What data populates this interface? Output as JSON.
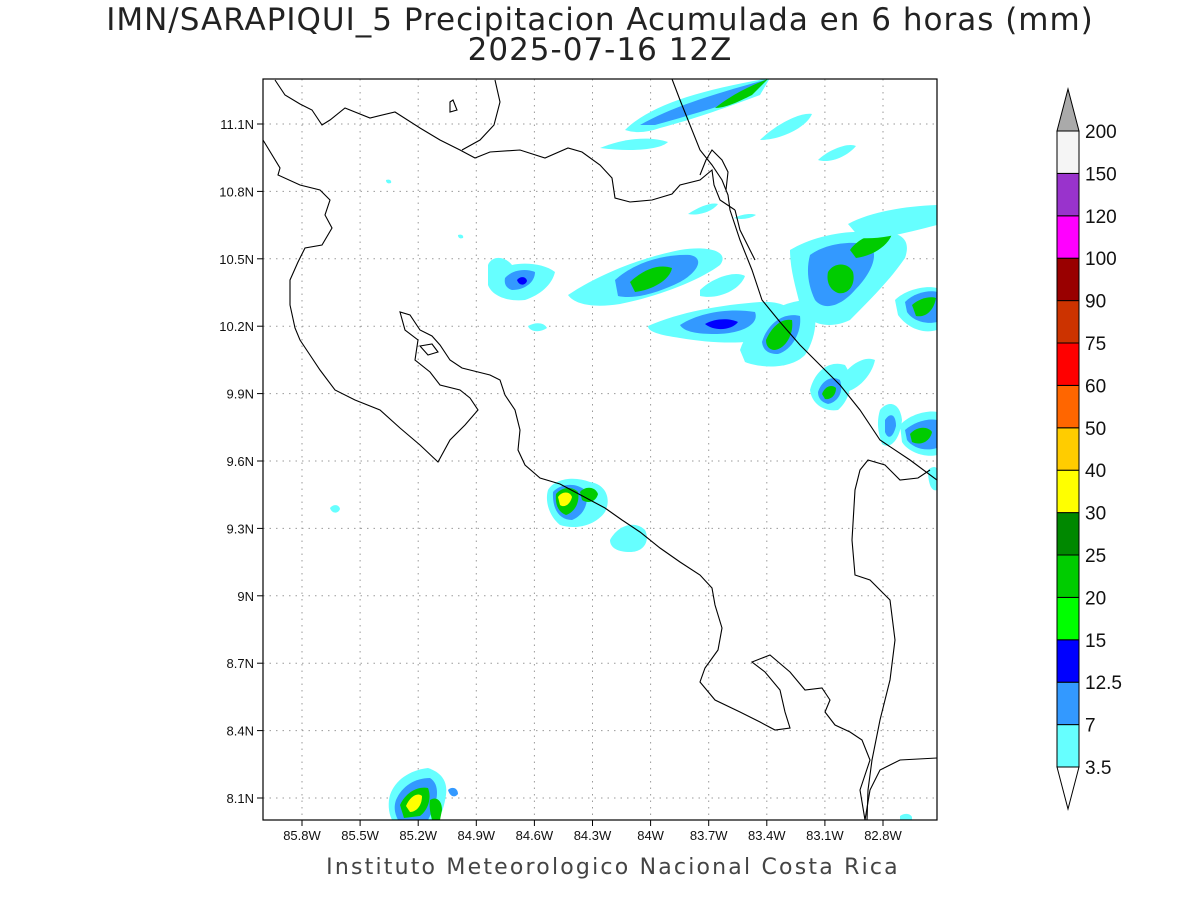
{
  "title_line1": "IMN/SARAPIQUI_5 Precipitacion Acumulada en 6 horas (mm)",
  "title_line2": "2025-07-16 12Z",
  "footer": "Instituto Meteorologico Nacional Costa Rica",
  "map": {
    "lon_ticks": [
      "85.8W",
      "85.5W",
      "85.2W",
      "84.9W",
      "84.6W",
      "84.3W",
      "84W",
      "83.7W",
      "83.4W",
      "83.1W",
      "82.8W"
    ],
    "lat_ticks": [
      "11.1N",
      "10.8N",
      "10.5N",
      "10.2N",
      "9.9N",
      "9.6N",
      "9.3N",
      "9N",
      "8.7N",
      "8.4N",
      "8.1N"
    ]
  },
  "colorbar": {
    "levels": [
      {
        "label": "3.5",
        "color": "#66ffff"
      },
      {
        "label": "7",
        "color": "#3399ff"
      },
      {
        "label": "12.5",
        "color": "#0000ff"
      },
      {
        "label": "15",
        "color": "#00ff00"
      },
      {
        "label": "20",
        "color": "#00cc00"
      },
      {
        "label": "25",
        "color": "#008800"
      },
      {
        "label": "30",
        "color": "#ffff00"
      },
      {
        "label": "40",
        "color": "#ffcc00"
      },
      {
        "label": "50",
        "color": "#ff6600"
      },
      {
        "label": "60",
        "color": "#ff0000"
      },
      {
        "label": "75",
        "color": "#cc3300"
      },
      {
        "label": "90",
        "color": "#990000"
      },
      {
        "label": "100",
        "color": "#ff00ff"
      },
      {
        "label": "120",
        "color": "#9933cc"
      },
      {
        "label": "150",
        "color": "#f5f5f5"
      },
      {
        "label": "200",
        "color": "#aaaaaa"
      }
    ]
  }
}
